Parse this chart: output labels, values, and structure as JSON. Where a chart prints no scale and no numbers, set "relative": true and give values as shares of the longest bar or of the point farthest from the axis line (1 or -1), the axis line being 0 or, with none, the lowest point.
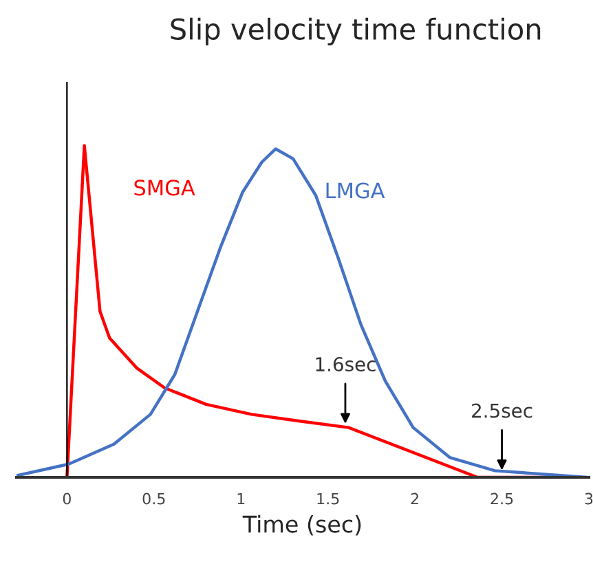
{
  "chart_data": {
    "type": "line",
    "title": "Slip velocity time function",
    "xlabel": "Time (sec)",
    "relative": true,
    "xlim": [
      -0.29,
      3
    ],
    "xticks": [
      0,
      0.5,
      1,
      1.5,
      2,
      2.5,
      3
    ],
    "series": [
      {
        "name": "SMGA",
        "color": "#ff0000",
        "x": [
          0,
          0.1,
          0.19,
          0.245,
          0.4,
          0.56,
          0.8,
          1.06,
          1.33,
          1.62,
          2.36,
          2.9
        ],
        "values": [
          0,
          1.0,
          0.5,
          0.42,
          0.33,
          0.27,
          0.22,
          0.19,
          0.17,
          0.15,
          0,
          0
        ]
      },
      {
        "name": "LMGA",
        "color": "#4472c4",
        "x": [
          -0.29,
          0.01,
          0.27,
          0.48,
          0.62,
          0.75,
          0.88,
          1.01,
          1.12,
          1.2,
          1.3,
          1.43,
          1.56,
          1.69,
          1.83,
          1.99,
          2.2,
          2.46,
          2.99
        ],
        "values": [
          0.005,
          0.04,
          0.1,
          0.19,
          0.31,
          0.5,
          0.69,
          0.86,
          0.95,
          0.99,
          0.96,
          0.85,
          0.66,
          0.46,
          0.29,
          0.15,
          0.06,
          0.02,
          0
        ]
      }
    ],
    "annotations": [
      {
        "text": "1.6sec",
        "x": 1.6,
        "y": 0.15
      },
      {
        "text": "2.5sec",
        "x": 2.5,
        "y": 0.01
      }
    ]
  }
}
